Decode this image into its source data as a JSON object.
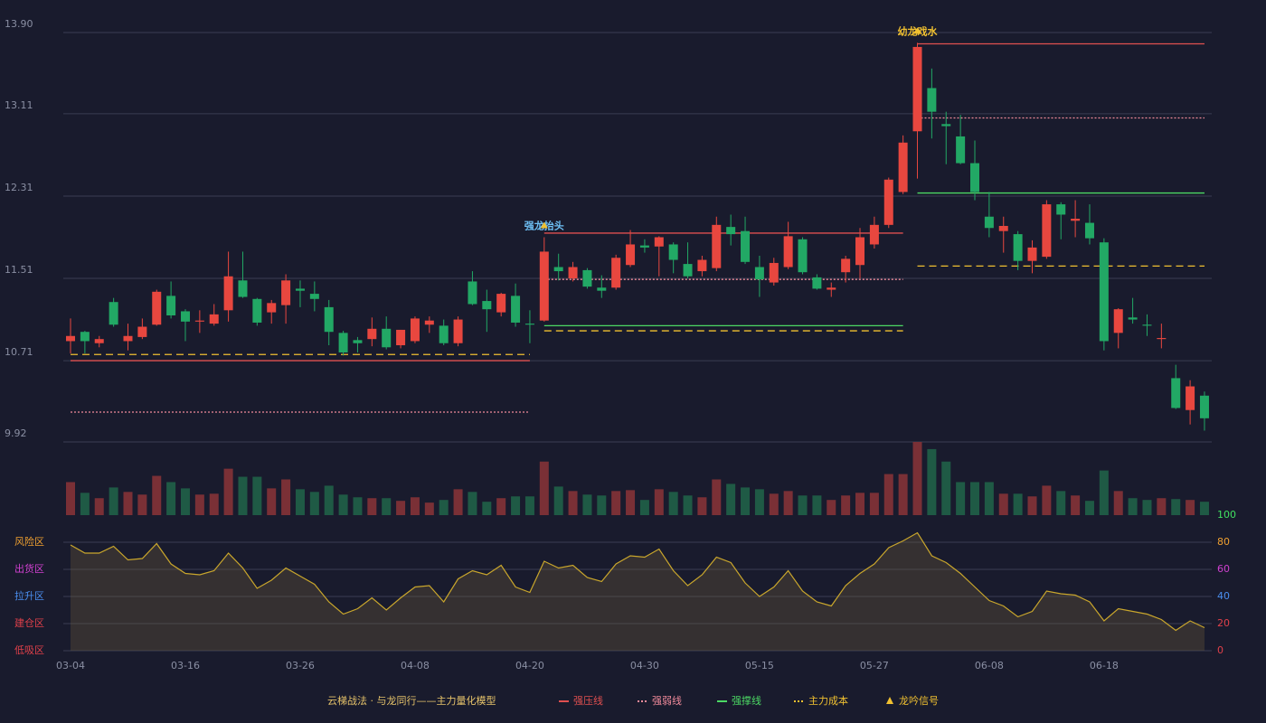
{
  "chart_data": [
    {
      "type": "candlestick",
      "up_color": "#e8473f",
      "down_color": "#22a865",
      "open": [
        10.9,
        10.99,
        10.88,
        11.28,
        10.9,
        10.94,
        11.06,
        11.34,
        11.19,
        11.09,
        11.07,
        11.2,
        11.49,
        11.31,
        11.18,
        11.25,
        11.41,
        11.36,
        11.23,
        10.98,
        10.91,
        10.92,
        11.02,
        10.86,
        10.9,
        11.06,
        11.05,
        10.88,
        11.48,
        11.29,
        11.18,
        11.34,
        11.07,
        11.1,
        11.62,
        11.51,
        11.59,
        11.42,
        11.42,
        11.64,
        11.83,
        11.82,
        11.84,
        11.65,
        11.58,
        11.61,
        12.01,
        11.97,
        11.62,
        11.47,
        11.62,
        11.89,
        11.52,
        11.4,
        11.57,
        11.64,
        11.84,
        12.03,
        12.35,
        12.94,
        13.36,
        13.01,
        12.89,
        12.63,
        12.11,
        11.97,
        11.94,
        11.68,
        11.72,
        12.23,
        12.07,
        12.05,
        11.86,
        10.98,
        11.13,
        11.06,
        10.92,
        10.54,
        10.23,
        10.37
      ],
      "close": [
        10.95,
        10.9,
        10.92,
        11.06,
        10.95,
        11.04,
        11.38,
        11.15,
        11.09,
        11.1,
        11.16,
        11.53,
        11.33,
        11.08,
        11.27,
        11.49,
        11.39,
        11.31,
        10.99,
        10.79,
        10.88,
        11.02,
        10.84,
        11.01,
        11.12,
        11.1,
        10.88,
        11.11,
        11.26,
        11.21,
        11.36,
        11.08,
        11.06,
        11.77,
        11.58,
        11.62,
        11.43,
        11.39,
        11.71,
        11.84,
        11.81,
        11.91,
        11.69,
        11.53,
        11.69,
        12.03,
        11.94,
        11.67,
        11.5,
        11.66,
        11.92,
        11.57,
        11.41,
        11.42,
        11.7,
        11.91,
        12.03,
        12.47,
        12.83,
        13.76,
        13.13,
        12.99,
        12.63,
        12.35,
        12.0,
        12.02,
        11.68,
        11.81,
        12.23,
        12.13,
        12.09,
        11.9,
        10.9,
        11.21,
        11.11,
        11.05,
        10.93,
        10.25,
        10.46,
        10.15
      ],
      "high": [
        11.12,
        11.0,
        10.95,
        11.32,
        11.07,
        11.12,
        11.4,
        11.48,
        11.21,
        11.2,
        11.26,
        11.77,
        11.77,
        11.32,
        11.3,
        11.55,
        11.49,
        11.48,
        11.3,
        11.0,
        10.94,
        11.13,
        11.14,
        11.01,
        11.14,
        11.14,
        11.11,
        11.14,
        11.58,
        11.4,
        11.37,
        11.46,
        11.2,
        11.91,
        11.75,
        11.67,
        11.61,
        11.54,
        11.74,
        11.98,
        11.89,
        11.92,
        11.86,
        11.86,
        11.73,
        12.11,
        12.13,
        12.11,
        11.73,
        11.71,
        12.06,
        11.91,
        11.55,
        11.47,
        11.73,
        12.0,
        12.11,
        12.49,
        12.9,
        13.8,
        13.55,
        13.13,
        13.1,
        12.85,
        12.35,
        12.11,
        11.97,
        11.88,
        12.27,
        12.25,
        12.27,
        12.23,
        11.9,
        11.22,
        11.32,
        11.16,
        11.07,
        10.67,
        10.52,
        10.41
      ],
      "low": [
        10.78,
        10.78,
        10.84,
        11.04,
        10.81,
        10.92,
        11.05,
        11.12,
        10.9,
        10.98,
        11.05,
        11.09,
        11.32,
        11.05,
        11.07,
        11.07,
        11.23,
        11.19,
        10.86,
        10.76,
        10.79,
        10.85,
        10.82,
        10.83,
        10.88,
        10.98,
        10.86,
        10.85,
        11.25,
        10.99,
        11.14,
        11.04,
        10.88,
        11.09,
        11.49,
        11.48,
        11.41,
        11.32,
        11.4,
        11.62,
        11.76,
        11.53,
        11.56,
        11.51,
        11.53,
        11.58,
        11.83,
        11.65,
        11.33,
        11.44,
        11.6,
        11.55,
        11.4,
        11.33,
        11.47,
        11.51,
        11.8,
        12.0,
        12.33,
        12.48,
        12.87,
        12.62,
        12.62,
        12.27,
        11.91,
        11.76,
        11.59,
        11.56,
        11.7,
        11.89,
        11.91,
        11.84,
        10.81,
        10.83,
        11.07,
        10.95,
        10.83,
        10.24,
        10.09,
        10.03
      ],
      "ylim": [
        9.92,
        13.9
      ],
      "yticks": [
        9.92,
        10.71,
        11.51,
        12.31,
        13.11,
        {
          "value": 13.9,
          "label": "13.90"
        }
      ],
      "grid": true,
      "levels": [
        {
          "name": "强压线",
          "color": "#e05050",
          "dash": "solid",
          "segments": [
            {
              "start": 0,
              "end": 32,
              "value": 10.71
            },
            {
              "start": 33,
              "end": 58,
              "value": 11.95
            },
            {
              "start": 59,
              "end": 79,
              "value": 13.79
            }
          ]
        },
        {
          "name": "强弱线",
          "color": "#f08a9a",
          "dash": "dotted",
          "segments": [
            {
              "start": 0,
              "end": 32,
              "value": 10.21
            },
            {
              "start": 33,
              "end": 58,
              "value": 11.5
            },
            {
              "start": 59,
              "end": 79,
              "value": 13.07
            }
          ]
        },
        {
          "name": "强撑线",
          "color": "#4cd964",
          "dash": "solid",
          "segments": [
            {
              "start": 33,
              "end": 58,
              "value": 11.05
            },
            {
              "start": 59,
              "end": 79,
              "value": 12.34
            }
          ]
        },
        {
          "name": "主力成本",
          "color": "#f0c030",
          "dash": "dashed",
          "segments": [
            {
              "start": 0,
              "end": 32,
              "value": 10.77
            },
            {
              "start": 33,
              "end": 58,
              "value": 11.0
            },
            {
              "start": 59,
              "end": 79,
              "value": 11.63
            }
          ]
        }
      ],
      "signals": {
        "name": "龙吟信号",
        "color": "#f0c030",
        "points": [
          {
            "index": 33,
            "label": "强龙抬头",
            "color": "#6ec0f5"
          },
          {
            "index": 59,
            "label": "幼龙戏水",
            "color": "#f0c030"
          }
        ]
      },
      "legend_title": "云梯战法 · 与龙同行——主力量化模型"
    },
    {
      "type": "bar",
      "up_color": "#7a3036",
      "down_color": "#1f5a45",
      "values": [
        37,
        25,
        19,
        31,
        26,
        23,
        44,
        37,
        30,
        23,
        24,
        52,
        43,
        43,
        30,
        40,
        29,
        26,
        33,
        23,
        20,
        19,
        19,
        16,
        20,
        14,
        17,
        29,
        26,
        15,
        19,
        21,
        21,
        60,
        32,
        27,
        23,
        22,
        27,
        28,
        17,
        29,
        26,
        22,
        20,
        40,
        35,
        31,
        29,
        24,
        27,
        22,
        22,
        17,
        22,
        25,
        25,
        46,
        46,
        82,
        74,
        60,
        37,
        37,
        37,
        24,
        24,
        21,
        33,
        27,
        22,
        16,
        50,
        27,
        19,
        17,
        19,
        18,
        17,
        15
      ],
      "ylim": [
        0,
        82
      ]
    },
    {
      "type": "line",
      "color": "#c9a62c",
      "categories": [
        "03-04",
        null,
        null,
        null,
        null,
        null,
        null,
        null,
        "03-16",
        null,
        null,
        null,
        null,
        null,
        null,
        null,
        "03-26",
        null,
        null,
        null,
        null,
        null,
        null,
        null,
        "04-08",
        null,
        null,
        null,
        null,
        null,
        null,
        null,
        "04-20",
        null,
        null,
        null,
        null,
        null,
        null,
        null,
        "04-30",
        null,
        null,
        null,
        null,
        null,
        null,
        null,
        "05-15",
        null,
        null,
        null,
        null,
        null,
        null,
        null,
        "05-27",
        null,
        null,
        null,
        null,
        null,
        null,
        null,
        "06-08",
        null,
        null,
        null,
        null,
        null,
        null,
        null,
        "06-18",
        null,
        null,
        null,
        null,
        null,
        null,
        null
      ],
      "values": [
        78,
        72,
        72,
        77,
        67,
        68,
        79,
        64,
        57,
        56,
        59,
        72,
        61,
        46,
        52,
        61,
        55,
        49,
        36,
        27,
        31,
        39,
        30,
        39,
        47,
        48,
        36,
        53,
        59,
        56,
        63,
        47,
        43,
        66,
        61,
        63,
        54,
        51,
        64,
        70,
        69,
        75,
        59,
        48,
        56,
        69,
        65,
        50,
        40,
        47,
        59,
        44,
        36,
        33,
        48,
        57,
        64,
        76,
        81,
        87,
        70,
        65,
        57,
        47,
        37,
        33,
        25,
        29,
        44,
        42,
        41,
        36,
        22,
        31,
        29,
        27,
        23,
        15,
        22,
        17
      ],
      "ylim": [
        0,
        100
      ],
      "yticks": [
        0,
        20,
        40,
        60,
        80,
        100
      ],
      "ytick_colors": [
        "#e0404a",
        "#e0404a",
        "#4a8ff0",
        "#d040d0",
        "#f0a030",
        "#40e060"
      ],
      "zones": [
        {
          "label": "风险区",
          "value": 80,
          "color": "#f0a030"
        },
        {
          "label": "出货区",
          "value": 60,
          "color": "#d040d0"
        },
        {
          "label": "拉升区",
          "value": 40,
          "color": "#4a8ff0"
        },
        {
          "label": "建仓区",
          "value": 20,
          "color": "#e0404a"
        },
        {
          "label": "低吸区",
          "value": 0,
          "color": "#e0404a"
        }
      ],
      "grid": true
    }
  ]
}
